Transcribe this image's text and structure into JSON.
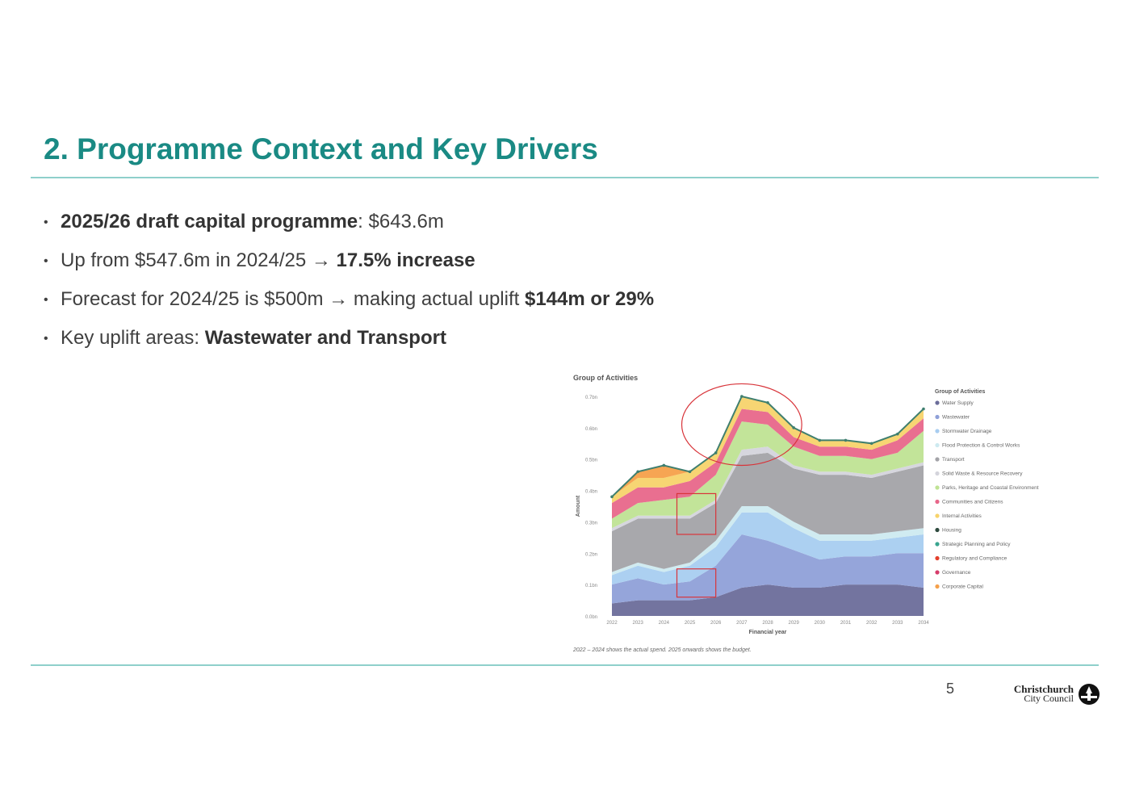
{
  "slide": {
    "title": "2. Programme Context and Key Drivers",
    "page_number": "5",
    "logo": {
      "line1": "Christchurch",
      "line2": "City Council"
    }
  },
  "bullets": [
    {
      "bold": "2025/26 draft capital programme",
      "text": ": $643.6m",
      "tail": "",
      "tail_bold": ""
    },
    {
      "bold": "",
      "text": "Up from $547.6m in 2024/25 → ",
      "tail": "",
      "tail_bold": "17.5% increase"
    },
    {
      "bold": "",
      "text": "Forecast for 2024/25 is $500m → making actual uplift ",
      "tail": "",
      "tail_bold": "$144m or 29%"
    },
    {
      "bold": "",
      "text": "Key uplift areas: ",
      "tail": "",
      "tail_bold": "Wastewater and Transport"
    }
  ],
  "chart_data": {
    "type": "area",
    "stacked": true,
    "title": "Group of Activities",
    "xlabel": "Financial year",
    "ylabel": "Amount",
    "note": "2022 – 2024 shows the actual spend.  2025 onwards shows the budget.",
    "x": [
      "2022",
      "2023",
      "2024",
      "2025",
      "2026",
      "2027",
      "2028",
      "2029",
      "2030",
      "2031",
      "2032",
      "2033",
      "2034"
    ],
    "y_ticks": [
      "0.0bn",
      "0.1bn",
      "0.2bn",
      "0.3bn",
      "0.4bn",
      "0.5bn",
      "0.6bn",
      "0.7bn"
    ],
    "ylim": [
      0,
      0.7
    ],
    "legend_title": "Group of Activities",
    "legend_position": "right",
    "series": [
      {
        "name": "Water Supply",
        "color": "#6b6d9a",
        "values": [
          0.04,
          0.05,
          0.05,
          0.05,
          0.06,
          0.09,
          0.1,
          0.09,
          0.09,
          0.1,
          0.1,
          0.1,
          0.09
        ]
      },
      {
        "name": "Wastewater",
        "color": "#8fa0d8",
        "values": [
          0.06,
          0.07,
          0.05,
          0.06,
          0.1,
          0.17,
          0.14,
          0.12,
          0.09,
          0.09,
          0.09,
          0.1,
          0.11
        ]
      },
      {
        "name": "Stormwater Drainage",
        "color": "#a8cdf0",
        "values": [
          0.03,
          0.04,
          0.04,
          0.05,
          0.06,
          0.07,
          0.09,
          0.07,
          0.06,
          0.05,
          0.05,
          0.05,
          0.06
        ]
      },
      {
        "name": "Flood Protection & Control Works",
        "color": "#cdeaf0",
        "values": [
          0.01,
          0.01,
          0.01,
          0.01,
          0.02,
          0.02,
          0.02,
          0.02,
          0.02,
          0.02,
          0.02,
          0.02,
          0.02
        ]
      },
      {
        "name": "Transport",
        "color": "#a3a3a8",
        "values": [
          0.13,
          0.14,
          0.16,
          0.14,
          0.12,
          0.16,
          0.17,
          0.17,
          0.19,
          0.19,
          0.18,
          0.19,
          0.2
        ]
      },
      {
        "name": "Solid Waste & Resource Recovery",
        "color": "#d4d4dc",
        "values": [
          0.01,
          0.01,
          0.01,
          0.01,
          0.01,
          0.02,
          0.02,
          0.01,
          0.01,
          0.01,
          0.01,
          0.01,
          0.01
        ]
      },
      {
        "name": "Parks, Heritage and Coastal Environment",
        "color": "#bfe394",
        "values": [
          0.03,
          0.04,
          0.05,
          0.06,
          0.08,
          0.09,
          0.07,
          0.06,
          0.05,
          0.05,
          0.05,
          0.05,
          0.1
        ]
      },
      {
        "name": "Communities and Citizens",
        "color": "#e8678a",
        "values": [
          0.05,
          0.05,
          0.04,
          0.05,
          0.04,
          0.04,
          0.04,
          0.03,
          0.03,
          0.03,
          0.03,
          0.04,
          0.04
        ]
      },
      {
        "name": "Internal Activities",
        "color": "#f7d36b",
        "values": [
          0.02,
          0.03,
          0.03,
          0.03,
          0.03,
          0.04,
          0.03,
          0.03,
          0.02,
          0.02,
          0.02,
          0.02,
          0.03
        ]
      },
      {
        "name": "Housing",
        "color": "#2e4a3e",
        "values": [
          0.0,
          0.0,
          0.0,
          0.0,
          0.0,
          0.0,
          0.0,
          0.0,
          0.0,
          0.0,
          0.0,
          0.0,
          0.0
        ]
      },
      {
        "name": "Strategic Planning and Policy",
        "color": "#3aa58f",
        "values": [
          0.0,
          0.0,
          0.0,
          0.0,
          0.0,
          0.0,
          0.0,
          0.0,
          0.0,
          0.0,
          0.0,
          0.0,
          0.0
        ]
      },
      {
        "name": "Regulatory and Compliance",
        "color": "#e3402c",
        "values": [
          0.0,
          0.0,
          0.0,
          0.0,
          0.0,
          0.0,
          0.0,
          0.0,
          0.0,
          0.0,
          0.0,
          0.0,
          0.0
        ]
      },
      {
        "name": "Governance",
        "color": "#d63c6a",
        "values": [
          0.0,
          0.0,
          0.0,
          0.0,
          0.0,
          0.0,
          0.0,
          0.0,
          0.0,
          0.0,
          0.0,
          0.0,
          0.0
        ]
      },
      {
        "name": "Corporate Capital",
        "color": "#f5a04a",
        "values": [
          0.0,
          0.02,
          0.04,
          0.0,
          0.0,
          0.0,
          0.0,
          0.0,
          0.0,
          0.0,
          0.0,
          0.0,
          0.0
        ]
      }
    ],
    "annotations": [
      {
        "shape": "ellipse",
        "color": "#d8343a",
        "x_range": [
          "2025",
          "2029"
        ],
        "y_range": [
          0.48,
          0.74
        ]
      },
      {
        "shape": "rect",
        "color": "#d8343a",
        "x_range": [
          "2025",
          "2026"
        ],
        "y_range": [
          0.26,
          0.39
        ]
      },
      {
        "shape": "rect",
        "color": "#d8343a",
        "x_range": [
          "2025",
          "2026"
        ],
        "y_range": [
          0.06,
          0.15
        ]
      }
    ]
  }
}
